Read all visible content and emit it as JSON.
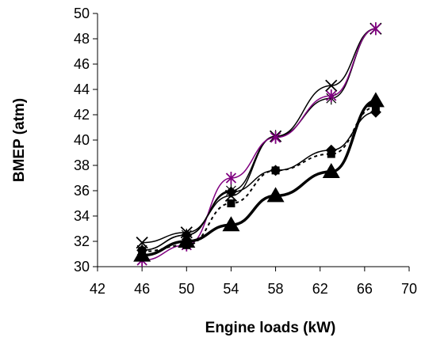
{
  "chart_data": {
    "type": "line",
    "xlabel": "Engine loads (kW)",
    "ylabel": "BMEP (atm)",
    "xlim": [
      42,
      70
    ],
    "ylim": [
      30,
      50
    ],
    "x_ticks": [
      "42",
      "46",
      "50",
      "54",
      "58",
      "62",
      "66",
      "70"
    ],
    "y_ticks": [
      "30",
      "32",
      "34",
      "36",
      "38",
      "40",
      "42",
      "44",
      "46",
      "48",
      "50"
    ],
    "grid": false,
    "legend": "none",
    "series": [
      {
        "marker": "x",
        "color": "#000000",
        "line": "solid-thin",
        "x": [
          46,
          50,
          54,
          58,
          63,
          67
        ],
        "y": [
          31.9,
          32.7,
          35.6,
          40.3,
          44.3,
          48.8
        ]
      },
      {
        "marker": "plus",
        "color": "#000000",
        "line": "solid-thin",
        "x": [
          46,
          50,
          54,
          58,
          63,
          67
        ],
        "y": [
          31.3,
          32.5,
          36.0,
          40.3,
          43.3,
          48.8
        ]
      },
      {
        "marker": "asterisk",
        "color": "#800080",
        "line": "solid-thin",
        "x": [
          46,
          50,
          54,
          58,
          63,
          67
        ],
        "y": [
          30.5,
          31.7,
          37.0,
          40.2,
          43.5,
          48.8
        ]
      },
      {
        "marker": "diamond",
        "color": "#000000",
        "line": "solid-thin",
        "x": [
          46,
          50,
          54,
          58,
          63,
          67
        ],
        "y": [
          31.3,
          32.5,
          35.9,
          37.6,
          39.2,
          42.2
        ]
      },
      {
        "marker": "square",
        "color": "#000000",
        "line": "dotted",
        "x": [
          46,
          50,
          54,
          58,
          63,
          67
        ],
        "y": [
          31.2,
          31.7,
          35.0,
          37.6,
          38.9,
          42.6
        ]
      },
      {
        "marker": "triangle",
        "color": "#000000",
        "line": "solid-thick",
        "x": [
          46,
          50,
          54,
          58,
          63,
          67
        ],
        "y": [
          30.9,
          32.0,
          33.3,
          35.6,
          37.5,
          43.1
        ]
      }
    ]
  }
}
